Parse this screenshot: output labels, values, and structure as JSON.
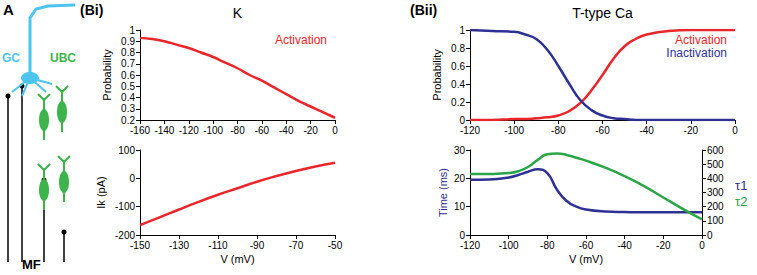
{
  "diagram": {
    "label": "A",
    "nodes": [
      {
        "label": "GC",
        "color": "#4cc4ee"
      },
      {
        "label": "UBC",
        "color": "#3cb44b"
      },
      {
        "label": "MF",
        "color": "#000000"
      }
    ]
  },
  "chart_data": [
    {
      "type": "line",
      "panel_label": "(Bi)",
      "title": "K",
      "ylabel": "Probability",
      "grid": false,
      "legend": "upper right",
      "x": [
        -160,
        -150,
        -140,
        -130,
        -120,
        -110,
        -100,
        -90,
        -80,
        -70,
        -60,
        -50,
        -40,
        -30,
        -20,
        -10,
        0
      ],
      "xlim": [
        -160,
        0
      ],
      "xticks": [
        -160,
        -140,
        -120,
        -100,
        -80,
        -60,
        -40,
        -20,
        0
      ],
      "ylim": [
        0.2,
        1
      ],
      "yticks": [
        0.2,
        0.3,
        0.4,
        0.5,
        0.6,
        0.7,
        0.8,
        0.9,
        1
      ],
      "series": [
        {
          "name": "Activation",
          "color": "#e8262b",
          "values": [
            0.93,
            0.92,
            0.9,
            0.87,
            0.84,
            0.8,
            0.76,
            0.71,
            0.66,
            0.6,
            0.55,
            0.49,
            0.43,
            0.37,
            0.32,
            0.27,
            0.22
          ]
        }
      ]
    },
    {
      "type": "line",
      "xlabel": "V (mV)",
      "ylabel": "Ik (pA)",
      "grid": false,
      "x": [
        -150,
        -140,
        -130,
        -120,
        -110,
        -100,
        -90,
        -80,
        -70,
        -60,
        -50
      ],
      "xlim": [
        -150,
        -50
      ],
      "xticks": [
        -150,
        -130,
        -110,
        -90,
        -70,
        -50
      ],
      "ylim": [
        -200,
        100
      ],
      "yticks": [
        -200,
        -100,
        0,
        100
      ],
      "color": "#e8262b",
      "values": [
        -165,
        -138,
        -110,
        -83,
        -58,
        -35,
        -12,
        8,
        26,
        42,
        55
      ]
    },
    {
      "type": "line",
      "panel_label": "(Bii)",
      "title": "T-type Ca",
      "ylabel": "Probability",
      "grid": false,
      "legend": "upper right",
      "x": [
        -120,
        -110,
        -100,
        -95,
        -90,
        -85,
        -80,
        -75,
        -70,
        -65,
        -60,
        -55,
        -50,
        -45,
        -40,
        -30,
        -20,
        -10,
        0
      ],
      "xlim": [
        -120,
        0
      ],
      "xticks": [
        -120,
        -100,
        -80,
        -60,
        -40,
        -20,
        0
      ],
      "ylim": [
        0,
        1
      ],
      "yticks": [
        0,
        0.2,
        0.4,
        0.6,
        0.8,
        1
      ],
      "series": [
        {
          "name": "Activation",
          "color": "#e8262b",
          "values": [
            0,
            0,
            0.01,
            0.01,
            0.02,
            0.03,
            0.05,
            0.1,
            0.19,
            0.33,
            0.5,
            0.68,
            0.82,
            0.9,
            0.95,
            0.99,
            1,
            1,
            1
          ]
        },
        {
          "name": "Inactivation",
          "color": "#2e3192",
          "values": [
            1,
            0.99,
            0.98,
            0.95,
            0.9,
            0.78,
            0.6,
            0.4,
            0.22,
            0.11,
            0.05,
            0.02,
            0.01,
            0,
            0,
            0,
            0,
            0,
            0
          ]
        }
      ]
    },
    {
      "type": "line",
      "xlabel": "V (mV)",
      "ylabel": "Time (ms)",
      "grid": false,
      "legend": "right",
      "x": [
        -120,
        -110,
        -100,
        -95,
        -90,
        -85,
        -80,
        -75,
        -70,
        -65,
        -60,
        -50,
        -40,
        -30,
        -20,
        -10,
        0
      ],
      "xlim": [
        -120,
        0
      ],
      "xticks": [
        -120,
        -100,
        -80,
        -60,
        -40,
        -20,
        0
      ],
      "ylim": [
        0,
        30
      ],
      "yticks": [
        0,
        10,
        20,
        30
      ],
      "y2lim": [
        0,
        600
      ],
      "y2ticks": [
        0,
        100,
        200,
        300,
        400,
        500,
        600
      ],
      "series": [
        {
          "name": "τ1",
          "color": "#2e3192",
          "values": [
            19.5,
            19.6,
            20.3,
            21.2,
            22.3,
            23.2,
            21.8,
            16,
            12,
            10,
            9,
            8.3,
            8.1,
            8,
            8,
            8,
            8
          ]
        },
        {
          "name": "τ2",
          "color": "#2aa548",
          "axis": "y2",
          "values": [
            430,
            431,
            437,
            450,
            480,
            530,
            570,
            575,
            565,
            545,
            525,
            475,
            415,
            345,
            265,
            185,
            110
          ]
        }
      ]
    }
  ]
}
